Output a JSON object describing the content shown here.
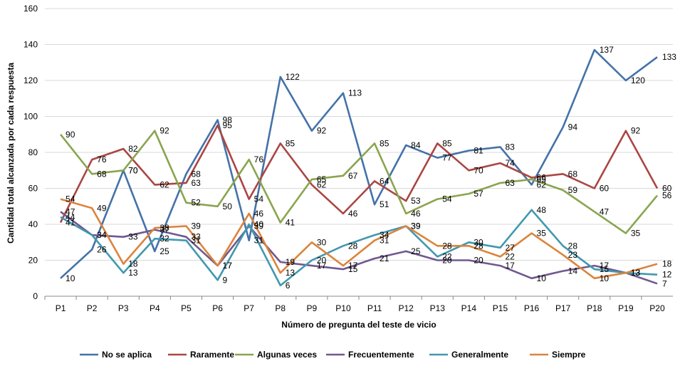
{
  "chart_data": {
    "type": "line",
    "title": "",
    "xlabel": "Número de pregunta del teste de vicio",
    "ylabel": "Cantidad total alcanzada por cada respuesta",
    "ylim": [
      0,
      160
    ],
    "yticks": [
      0,
      20,
      40,
      60,
      80,
      100,
      120,
      140,
      160
    ],
    "grid": true,
    "legend_position": "bottom",
    "categories": [
      "P1",
      "P2",
      "P3",
      "P4",
      "P5",
      "P6",
      "P7",
      "P8",
      "P9",
      "P10",
      "P11",
      "P12",
      "P13",
      "P14",
      "P15",
      "P16",
      "P17",
      "P18",
      "P19",
      "P20"
    ],
    "series": [
      {
        "name": "No se aplica",
        "color": "#4472A8",
        "values": [
          10,
          26,
          70,
          25,
          68,
          98,
          31,
          122,
          92,
          113,
          51,
          84,
          77,
          81,
          83,
          62,
          94,
          137,
          120,
          133
        ]
      },
      {
        "name": "Raramente",
        "color": "#AA4643",
        "values": [
          41,
          76,
          82,
          62,
          63,
          95,
          54,
          85,
          62,
          46,
          64,
          53,
          85,
          70,
          74,
          66,
          68,
          60,
          92,
          60
        ]
      },
      {
        "name": "Algunas veces",
        "color": "#89A54E",
        "values": [
          90,
          68,
          70,
          92,
          52,
          50,
          76,
          41,
          65,
          67,
          85,
          46,
          54,
          57,
          63,
          65,
          59,
          47,
          35,
          56
        ]
      },
      {
        "name": "Frecuentemente",
        "color": "#71588F",
        "values": [
          47,
          34,
          33,
          37,
          33,
          17,
          39,
          19,
          17,
          15,
          21,
          25,
          20,
          20,
          17,
          10,
          14,
          17,
          13,
          7
        ]
      },
      {
        "name": "Generalmente",
        "color": "#4198AF",
        "values": [
          44,
          34,
          13,
          32,
          31,
          9,
          40,
          6,
          20,
          28,
          34,
          39,
          22,
          30,
          27,
          48,
          28,
          15,
          13,
          12
        ]
      },
      {
        "name": "Siempre",
        "color": "#DB843D",
        "values": [
          54,
          49,
          18,
          38,
          39,
          17,
          46,
          13,
          30,
          17,
          31,
          39,
          28,
          28,
          22,
          35,
          23,
          10,
          13,
          18
        ]
      }
    ]
  }
}
